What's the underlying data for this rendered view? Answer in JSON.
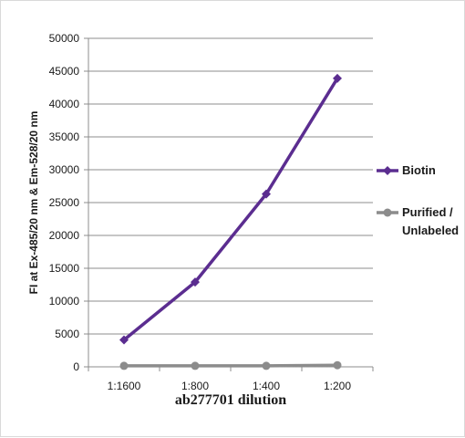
{
  "chart_data": {
    "type": "line",
    "xlabel": "ab277701 dilution",
    "ylabel": "FI at Ex-485/20 nm & Em-528/20 nm",
    "categories": [
      "1:1600",
      "1:800",
      "1:400",
      "1:200"
    ],
    "ylim": [
      0,
      50000
    ],
    "yticks": [
      0,
      5000,
      10000,
      15000,
      20000,
      25000,
      30000,
      35000,
      40000,
      45000,
      50000
    ],
    "grid": true,
    "legend_position": "right",
    "series": [
      {
        "name": "Biotin",
        "values": [
          4100,
          12900,
          26300,
          43900
        ],
        "color": "#5b2d90",
        "marker": "diamond"
      },
      {
        "name_lines": [
          "Purified /",
          "Unlabeled"
        ],
        "values": [
          150,
          150,
          150,
          250
        ],
        "color": "#8c8c8c",
        "marker": "circle"
      }
    ]
  }
}
